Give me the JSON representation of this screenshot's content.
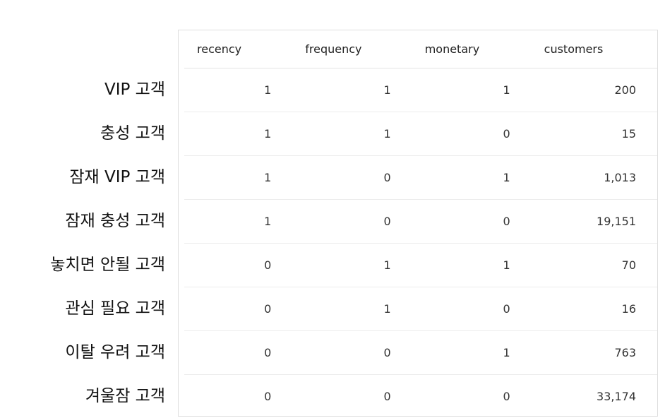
{
  "columns": [
    "recency",
    "frequency",
    "monetary",
    "customers"
  ],
  "rows": [
    {
      "label": "VIP 고객",
      "recency": "1",
      "frequency": "1",
      "monetary": "1",
      "customers": "200"
    },
    {
      "label": "충성 고객",
      "recency": "1",
      "frequency": "1",
      "monetary": "0",
      "customers": "15"
    },
    {
      "label": "잠재 VIP 고객",
      "recency": "1",
      "frequency": "0",
      "monetary": "1",
      "customers": "1,013"
    },
    {
      "label": "잠재 충성 고객",
      "recency": "1",
      "frequency": "0",
      "monetary": "0",
      "customers": "19,151"
    },
    {
      "label": "놓치면 안될 고객",
      "recency": "0",
      "frequency": "1",
      "monetary": "1",
      "customers": "70"
    },
    {
      "label": "관심 필요 고객",
      "recency": "0",
      "frequency": "1",
      "monetary": "0",
      "customers": "16"
    },
    {
      "label": "이탈 우려 고객",
      "recency": "0",
      "frequency": "0",
      "monetary": "1",
      "customers": "763"
    },
    {
      "label": "겨울잠 고객",
      "recency": "0",
      "frequency": "0",
      "monetary": "0",
      "customers": "33,174"
    }
  ]
}
